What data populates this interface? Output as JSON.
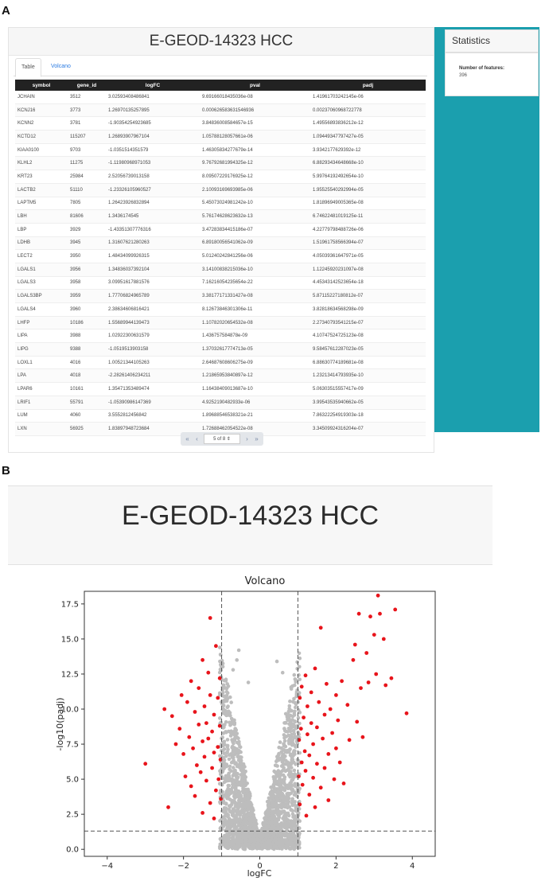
{
  "panel_labels": {
    "a": "A",
    "b": "B"
  },
  "app": {
    "title": "E-GEOD-14323 HCC",
    "tabs": [
      {
        "label": "Table",
        "active": true
      },
      {
        "label": "Volcano",
        "active": false
      }
    ]
  },
  "table": {
    "columns": [
      "symbol",
      "gene_id",
      "logFC",
      "pval",
      "padj"
    ],
    "rows": [
      [
        "JCHAIN",
        "3512",
        "3.02593408486841",
        "9.69166018435036e-08",
        "1.41961703242145e-06"
      ],
      [
        "KCNJ16",
        "3773",
        "1.26970135257895",
        "0.000626583631546936",
        "0.00237060968722778"
      ],
      [
        "KCNN2",
        "3781",
        "-1.90354254923685",
        "3.84836008584657e-15",
        "1.49556893836212e-12"
      ],
      [
        "KCTD12",
        "115207",
        "1.26893907967104",
        "1.05788128057661e-06",
        "1.09449347797427e-05"
      ],
      [
        "KIAA0100",
        "9703",
        "-1.0351514351579",
        "1.46305834277679e-14",
        "3.9342177629392e-12"
      ],
      [
        "KLHL2",
        "11275",
        "-1.11980968971053",
        "9.76792681994325e-12",
        "6.88293434648668e-10"
      ],
      [
        "KRT23",
        "25984",
        "2.52056739013158",
        "8.09507229176925e-12",
        "5.99764192492654e-10"
      ],
      [
        "LACTB2",
        "51110",
        "-1.23326105960527",
        "2.10093169693985e-06",
        "1.95525540292994e-05"
      ],
      [
        "LAPTM5",
        "7805",
        "1.26423926832894",
        "5.45073024981242e-10",
        "1.81896949005365e-08"
      ],
      [
        "LBH",
        "81606",
        "1.3436174545",
        "5.76174628623632e-13",
        "6.74622481019125e-11"
      ],
      [
        "LBP",
        "3929",
        "-1.43351307776316",
        "3.47283834415186e-07",
        "4.22779798488726e-06"
      ],
      [
        "LDHB",
        "3945",
        "1.31607621280263",
        "6.89180056541062e-09",
        "1.51961758566394e-07"
      ],
      [
        "LECT2",
        "3950",
        "1.48434099926315",
        "5.01240242841256e-06",
        "4.05039361647971e-05"
      ],
      [
        "LGALS1",
        "3956",
        "1.34836037392104",
        "3.14100838215036e-10",
        "1.12245920231097e-08"
      ],
      [
        "LGALS3",
        "3958",
        "3.09951617881576",
        "7.16216054235654e-22",
        "4.45343142523654e-18"
      ],
      [
        "LGALS3BP",
        "3959",
        "1.77706824965789",
        "3.38177171331427e-08",
        "5.87115227180812e-07"
      ],
      [
        "LGALS4",
        "3960",
        "2.38634606816421",
        "8.12673846301306e-11",
        "3.82818634568298e-09"
      ],
      [
        "LHFP",
        "10186",
        "1.55689944139473",
        "1.10782020654532e-08",
        "2.27340793541215e-07"
      ],
      [
        "LIPA",
        "3988",
        "1.02922300631579",
        "1.436757584878e-09",
        "4.10747524725123e-08"
      ],
      [
        "LIPG",
        "9388",
        "-1.0519513903158",
        "1.37032617774713e-05",
        "9.58457612287023e-05"
      ],
      [
        "LOXL1",
        "4016",
        "1.00521344105263",
        "2.64687608606275e-09",
        "6.88630774189681e-08"
      ],
      [
        "LPA",
        "4018",
        "-2.28261406234211",
        "1.21865953840897e-12",
        "1.23213414793935e-10"
      ],
      [
        "LPAR6",
        "10161",
        "1.35471353489474",
        "1.16438409013687e-10",
        "5.06303515557417e-09"
      ],
      [
        "LRIF1",
        "55791",
        "-1.05390986147369",
        "4.9252190482933e-06",
        "3.99543535940662e-05"
      ],
      [
        "LUM",
        "4060",
        "3.5552812456842",
        "1.89688546538321e-21",
        "7.86322254919303e-18"
      ],
      [
        "LXN",
        "56925",
        "1.83897948723684",
        "1.72688462054522e-08",
        "3.34509924316204e-07"
      ]
    ]
  },
  "pager": {
    "first": "«",
    "prev": "‹",
    "select": "5 of 8 ⇕",
    "next": "›",
    "last": "»"
  },
  "statistics": {
    "title": "Statistics",
    "label": "Number of features:",
    "value": "396"
  },
  "panel_b": {
    "title": "E-GEOD-14323 HCC"
  },
  "colors": {
    "accent": "#1b9fae",
    "significant": "#e8141b",
    "nonsignificant": "#bdbdbd",
    "table_header": "#222222"
  },
  "chart_data": {
    "type": "scatter",
    "title": "Volcano",
    "xlabel": "logFC",
    "ylabel": "-log10(padj)",
    "xlim": [
      -4.6,
      4.6
    ],
    "ylim": [
      -0.5,
      18.4
    ],
    "xticks": [
      -4,
      -2,
      0,
      2,
      4
    ],
    "yticks": [
      0.0,
      2.5,
      5.0,
      7.5,
      10.0,
      12.5,
      15.0,
      17.5
    ],
    "thresholds": {
      "logFC": [
        -1,
        1
      ],
      "padj_line": 1.3
    },
    "series": [
      {
        "category": "significant",
        "color": "#e8141b",
        "points": [
          [
            -3.0,
            6.1
          ],
          [
            -2.5,
            10.0
          ],
          [
            -2.4,
            3.0
          ],
          [
            -2.3,
            9.5
          ],
          [
            -2.2,
            7.5
          ],
          [
            -2.1,
            8.6
          ],
          [
            -2.05,
            11.0
          ],
          [
            -2.0,
            6.8
          ],
          [
            -1.95,
            5.2
          ],
          [
            -1.9,
            10.5
          ],
          [
            -1.85,
            8.0
          ],
          [
            -1.8,
            12.0
          ],
          [
            -1.8,
            4.5
          ],
          [
            -1.75,
            7.2
          ],
          [
            -1.7,
            9.8
          ],
          [
            -1.7,
            3.8
          ],
          [
            -1.65,
            6.0
          ],
          [
            -1.6,
            11.5
          ],
          [
            -1.6,
            8.9
          ],
          [
            -1.55,
            5.5
          ],
          [
            -1.5,
            13.5
          ],
          [
            -1.5,
            7.7
          ],
          [
            -1.5,
            2.6
          ],
          [
            -1.45,
            10.2
          ],
          [
            -1.45,
            6.6
          ],
          [
            -1.4,
            9.0
          ],
          [
            -1.4,
            4.9
          ],
          [
            -1.35,
            12.6
          ],
          [
            -1.35,
            7.9
          ],
          [
            -1.3,
            3.3
          ],
          [
            -1.3,
            16.5
          ],
          [
            -1.3,
            11.0
          ],
          [
            -1.25,
            8.4
          ],
          [
            -1.25,
            5.8
          ],
          [
            -1.2,
            6.9
          ],
          [
            -1.2,
            9.6
          ],
          [
            -1.2,
            2.2
          ],
          [
            -1.15,
            14.5
          ],
          [
            -1.15,
            4.2
          ],
          [
            -1.1,
            10.8
          ],
          [
            -1.1,
            7.3
          ],
          [
            -1.08,
            5.0
          ],
          [
            -1.05,
            8.8
          ],
          [
            -1.05,
            12.2
          ],
          [
            -1.03,
            6.4
          ],
          [
            -1.02,
            3.6
          ],
          [
            1.02,
            5.2
          ],
          [
            1.03,
            7.8
          ],
          [
            1.05,
            10.8
          ],
          [
            1.05,
            3.2
          ],
          [
            1.08,
            8.6
          ],
          [
            1.1,
            6.2
          ],
          [
            1.1,
            11.6
          ],
          [
            1.12,
            4.6
          ],
          [
            1.15,
            9.4
          ],
          [
            1.18,
            7.0
          ],
          [
            1.2,
            12.4
          ],
          [
            1.2,
            5.6
          ],
          [
            1.22,
            2.4
          ],
          [
            1.25,
            8.2
          ],
          [
            1.25,
            10.2
          ],
          [
            1.3,
            6.7
          ],
          [
            1.3,
            3.9
          ],
          [
            1.35,
            11.2
          ],
          [
            1.35,
            9.0
          ],
          [
            1.4,
            5.1
          ],
          [
            1.4,
            7.5
          ],
          [
            1.45,
            12.9
          ],
          [
            1.45,
            3.0
          ],
          [
            1.5,
            8.7
          ],
          [
            1.5,
            6.1
          ],
          [
            1.55,
            10.5
          ],
          [
            1.6,
            15.8
          ],
          [
            1.6,
            4.4
          ],
          [
            1.65,
            7.9
          ],
          [
            1.7,
            9.6
          ],
          [
            1.7,
            5.8
          ],
          [
            1.75,
            11.8
          ],
          [
            1.8,
            6.8
          ],
          [
            1.8,
            3.5
          ],
          [
            1.85,
            10.0
          ],
          [
            1.9,
            8.3
          ],
          [
            1.95,
            5.0
          ],
          [
            2.0,
            11.0
          ],
          [
            2.0,
            7.2
          ],
          [
            2.05,
            9.2
          ],
          [
            2.1,
            6.2
          ],
          [
            2.15,
            12.0
          ],
          [
            2.2,
            4.7
          ],
          [
            2.3,
            10.3
          ],
          [
            2.35,
            7.8
          ],
          [
            2.45,
            13.5
          ],
          [
            2.5,
            14.6
          ],
          [
            2.55,
            9.1
          ],
          [
            2.6,
            16.8
          ],
          [
            2.65,
            11.5
          ],
          [
            2.7,
            8.0
          ],
          [
            2.8,
            14.0
          ],
          [
            2.85,
            11.9
          ],
          [
            2.9,
            16.6
          ],
          [
            3.0,
            15.3
          ],
          [
            3.05,
            12.5
          ],
          [
            3.1,
            18.1
          ],
          [
            3.15,
            16.8
          ],
          [
            3.25,
            15.0
          ],
          [
            3.3,
            11.7
          ],
          [
            3.45,
            12.2
          ],
          [
            3.55,
            17.1
          ],
          [
            3.85,
            9.7
          ]
        ]
      },
      {
        "category": "nonsignificant",
        "color": "#bdbdbd",
        "points": []
      }
    ]
  }
}
